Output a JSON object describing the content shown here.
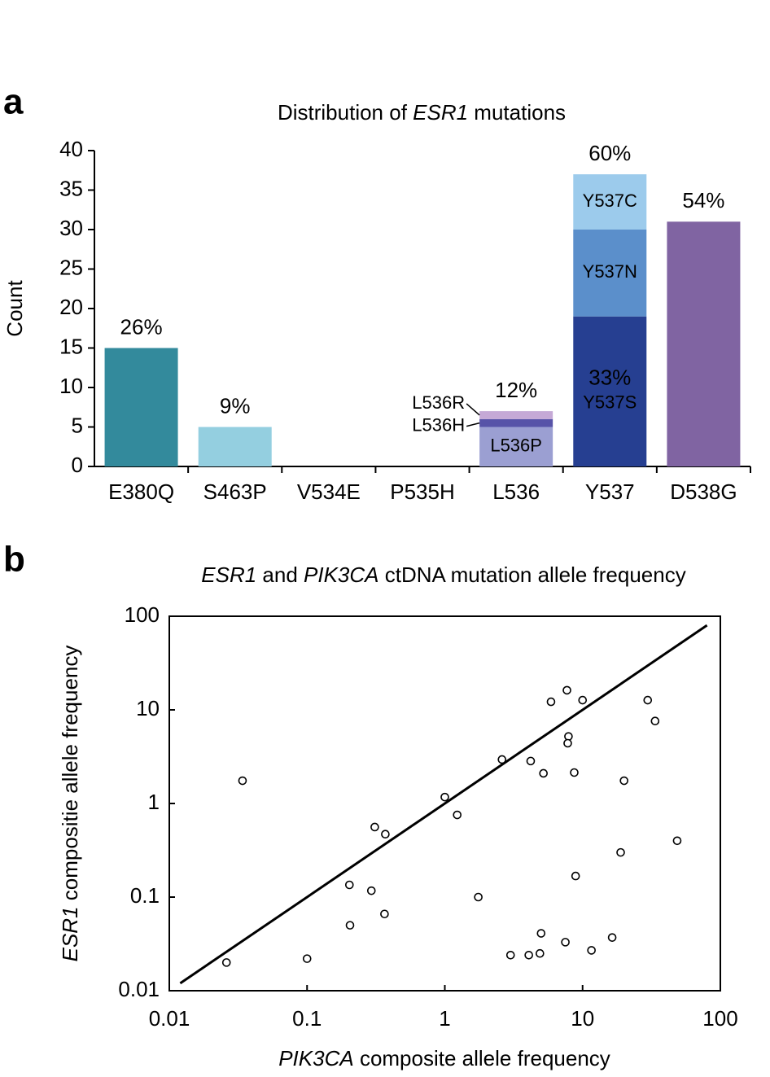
{
  "chart_data": [
    {
      "type": "bar",
      "panel": "a",
      "title": [
        {
          "text": "Distribution of "
        },
        {
          "text": "ESR1",
          "italic": true
        },
        {
          "text": " mutations"
        }
      ],
      "ylabel": "Count",
      "categories": [
        "E380Q",
        "S463P",
        "V534E",
        "P535H",
        "L536",
        "Y537",
        "D538G"
      ],
      "series": [
        {
          "name": "E380Q",
          "color": "#338a9c",
          "values": [
            15,
            null,
            null,
            null,
            null,
            null,
            null
          ]
        },
        {
          "name": "S463P",
          "color": "#94cfe0",
          "values": [
            null,
            5,
            null,
            null,
            null,
            null,
            null
          ]
        },
        {
          "name": "L536P",
          "color": "#9b9fd2",
          "show_name": true,
          "values": [
            null,
            null,
            null,
            null,
            5,
            null,
            null
          ]
        },
        {
          "name": "L536H",
          "color": "#5753a8",
          "show_name": true,
          "values": [
            null,
            null,
            null,
            null,
            1,
            null,
            null
          ]
        },
        {
          "name": "L536R",
          "color": "#c5a9d6",
          "show_name": true,
          "values": [
            null,
            null,
            null,
            null,
            1,
            null,
            null
          ]
        },
        {
          "name": "Y537S",
          "color": "#263f91",
          "show_name": true,
          "values": [
            null,
            null,
            null,
            null,
            null,
            19,
            null
          ]
        },
        {
          "name": "Y537N",
          "color": "#5b8fcb",
          "show_name": true,
          "values": [
            null,
            null,
            null,
            null,
            null,
            11,
            null
          ]
        },
        {
          "name": "Y537C",
          "color": "#9ccbec",
          "show_name": true,
          "values": [
            null,
            null,
            null,
            null,
            null,
            7,
            null
          ]
        },
        {
          "name": "D538G",
          "color": "#8064a2",
          "values": [
            null,
            null,
            null,
            null,
            null,
            null,
            31
          ]
        }
      ],
      "annotations": [
        {
          "text": "26%",
          "category": "E380Q"
        },
        {
          "text": "9%",
          "category": "S463P"
        },
        {
          "text": "12%",
          "category": "L536"
        },
        {
          "text": "33%",
          "series": "Y537S"
        },
        {
          "text": "60%",
          "category": "Y537"
        },
        {
          "text": "54%",
          "category": "D538G"
        }
      ],
      "ylim": [
        0,
        40
      ],
      "yticks": [
        0,
        5,
        10,
        15,
        20,
        25,
        30,
        35,
        40
      ]
    },
    {
      "type": "scatter",
      "panel": "b",
      "log_x": true,
      "log_y": true,
      "title": [
        {
          "text": "ESR1",
          "italic": true
        },
        {
          "text": " and "
        },
        {
          "text": "PIK3CA",
          "italic": true
        },
        {
          "text": " ctDNA mutation allele frequency"
        }
      ],
      "xlabel": [
        {
          "text": "PIK3CA",
          "italic": true
        },
        {
          "text": " composite allele frequency"
        }
      ],
      "ylabel": [
        {
          "text": "ESR1",
          "italic": true
        },
        {
          "text": " compositie allele frequency"
        }
      ],
      "x": [
        0.026,
        0.034,
        0.1,
        0.203,
        0.205,
        0.293,
        0.31,
        0.365,
        0.37,
        1.0,
        1.23,
        1.75,
        2.6,
        3.0,
        4.07,
        4.2,
        4.9,
        5.0,
        5.2,
        5.9,
        7.5,
        7.7,
        7.9,
        7.8,
        8.7,
        8.9,
        10.0,
        11.6,
        16.4,
        18.9,
        20,
        29.7,
        33.6,
        48.6
      ],
      "y": [
        0.02,
        1.75,
        0.022,
        0.135,
        0.05,
        0.117,
        0.56,
        0.066,
        0.47,
        1.17,
        0.755,
        0.1,
        2.95,
        0.024,
        0.024,
        2.84,
        0.025,
        0.041,
        2.1,
        12.2,
        0.033,
        16.2,
        5.2,
        4.4,
        2.14,
        0.168,
        12.7,
        0.027,
        0.037,
        0.3,
        1.75,
        12.7,
        7.6,
        0.4
      ],
      "reference_line": {
        "x": [
          0.012,
          80
        ],
        "y": [
          0.012,
          80
        ]
      },
      "xlim": [
        0.01,
        100
      ],
      "ylim": [
        0.01,
        100
      ],
      "xticks": [
        0.01,
        0.1,
        1,
        10,
        100
      ],
      "yticks": [
        0.01,
        0.1,
        1,
        10,
        100
      ]
    }
  ]
}
